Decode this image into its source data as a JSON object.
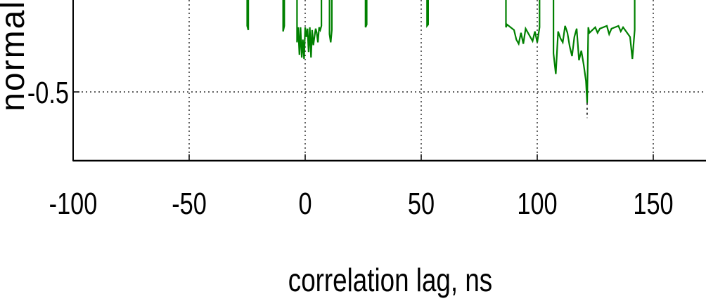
{
  "chart_data": {
    "type": "line",
    "title": "",
    "xlabel": "correlation lag, ns",
    "ylabel": "normal",
    "xlim": [
      -100,
      175
    ],
    "ylim": [
      -0.75,
      0.02
    ],
    "x_ticks": [
      -100,
      -50,
      0,
      50,
      100,
      150
    ],
    "x_tick_labels": [
      "-100",
      "-50",
      "0",
      "50",
      "100",
      "150"
    ],
    "y_ticks": [
      -0.5
    ],
    "y_tick_labels": [
      "-0.5"
    ],
    "grid": true,
    "series": [
      {
        "color": "#008000",
        "points": [
          [
            -25,
            -0.02
          ],
          [
            -24.5,
            -0.05
          ],
          [
            -9.5,
            -0.06
          ],
          [
            -9,
            -0.02
          ],
          [
            -3.5,
            -0.14
          ],
          [
            -3,
            -0.03
          ],
          [
            -2.5,
            -0.23
          ],
          [
            -2,
            -0.03
          ],
          [
            -1.5,
            -0.25
          ],
          [
            -1,
            -0.12
          ],
          [
            -0.5,
            -0.26
          ],
          [
            0,
            -0.03
          ],
          [
            0.5,
            -0.1
          ],
          [
            1,
            -0.04
          ],
          [
            1.5,
            -0.21
          ],
          [
            2,
            -0.03
          ],
          [
            2.5,
            -0.25
          ],
          [
            3,
            -0.05
          ],
          [
            3.5,
            -0.16
          ],
          [
            4,
            -0.1
          ],
          [
            4.5,
            -0.04
          ],
          [
            5,
            -0.07
          ],
          [
            5.5,
            -0.14
          ],
          [
            6,
            -0.03
          ],
          [
            6.5,
            -0.05
          ],
          [
            7,
            -0.02
          ],
          [
            10.5,
            -0.08
          ],
          [
            11,
            -0.14
          ],
          [
            11.5,
            -0.05
          ],
          [
            26,
            -0.03
          ],
          [
            26.5,
            -0.01
          ],
          [
            52.5,
            -0.02
          ],
          [
            53,
            -0.01
          ],
          [
            86.5,
            -0.03
          ],
          [
            87,
            -0.01
          ],
          [
            90,
            -0.05
          ],
          [
            91,
            -0.12
          ],
          [
            92,
            -0.15
          ],
          [
            93,
            -0.07
          ],
          [
            94,
            -0.15
          ],
          [
            95,
            -0.04
          ],
          [
            98,
            -0.13
          ],
          [
            99,
            -0.06
          ],
          [
            100,
            -0.14
          ],
          [
            101,
            -0.03
          ],
          [
            107,
            -0.22
          ],
          [
            108,
            -0.37
          ],
          [
            109,
            -0.06
          ],
          [
            110,
            -0.11
          ],
          [
            111,
            -0.14
          ],
          [
            112,
            -0.02
          ],
          [
            113,
            -0.07
          ],
          [
            114,
            -0.17
          ],
          [
            115,
            -0.24
          ],
          [
            116,
            -0.1
          ],
          [
            117,
            -0.04
          ],
          [
            118,
            -0.27
          ],
          [
            119,
            -0.2
          ],
          [
            120,
            -0.3
          ],
          [
            121,
            -0.42
          ],
          [
            121.5,
            -0.58
          ],
          [
            122,
            -0.03
          ],
          [
            122.5,
            -0.07
          ],
          [
            125,
            -0.03
          ],
          [
            126,
            -0.07
          ],
          [
            127,
            -0.04
          ],
          [
            130,
            -0.02
          ],
          [
            131,
            -0.08
          ],
          [
            132,
            -0.04
          ],
          [
            135,
            -0.02
          ],
          [
            136,
            -0.06
          ],
          [
            137,
            -0.03
          ],
          [
            140,
            -0.1
          ],
          [
            141,
            -0.26
          ],
          [
            142,
            -0.05
          ]
        ],
        "extension_points": [
          [
            121.5,
            -0.58
          ],
          [
            121.5,
            -0.69
          ]
        ]
      }
    ]
  }
}
